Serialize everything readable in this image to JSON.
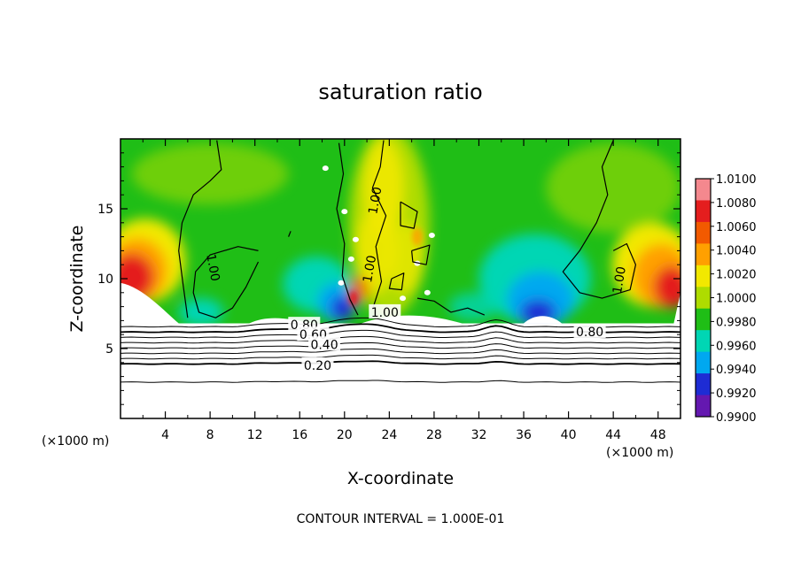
{
  "chart_data": {
    "type": "heatmap",
    "title": "saturation ratio",
    "xlabel": "X-coordinate",
    "ylabel": "Z-coordinate",
    "x_unit_left": "(×1000 m)",
    "x_unit_right": "(×1000 m)",
    "footer": "CONTOUR INTERVAL = 1.000E-01",
    "xlim": [
      0,
      50
    ],
    "ylim": [
      0,
      20
    ],
    "x_ticks": [
      4,
      8,
      12,
      16,
      20,
      24,
      28,
      32,
      36,
      40,
      44,
      48
    ],
    "x_tick_labels": [
      "4",
      "8",
      "12",
      "16",
      "20",
      "24",
      "28",
      "32",
      "36",
      "40",
      "44",
      "48"
    ],
    "y_ticks": [
      5,
      10,
      15
    ],
    "y_tick_labels": [
      "5",
      "10",
      "15"
    ],
    "colorbar": {
      "min": 0.99,
      "max": 1.01,
      "labels": [
        "1.0100",
        "1.0080",
        "1.0060",
        "1.0040",
        "1.0020",
        "1.0000",
        "0.9980",
        "0.9960",
        "0.9940",
        "0.9920",
        "0.9900"
      ],
      "colors": [
        "#f4888e",
        "#e41e1e",
        "#f25a00",
        "#ffa000",
        "#f2e800",
        "#aedc00",
        "#1fbe16",
        "#00d6b4",
        "#00a8f0",
        "#1e2cd4",
        "#6418b0"
      ]
    },
    "contour_labels": [
      {
        "text": "1.00",
        "x": 8.3,
        "y": 10.8,
        "angle": 80
      },
      {
        "text": "1.00",
        "x": 22.7,
        "y": 15.6,
        "angle": -80
      },
      {
        "text": "1.00",
        "x": 22.2,
        "y": 10.7,
        "angle": -80
      },
      {
        "text": "1.00",
        "x": 23.6,
        "y": 7.6,
        "angle": 0
      },
      {
        "text": "1.00",
        "x": 44.5,
        "y": 9.9,
        "angle": -80
      },
      {
        "text": "0.80",
        "x": 16.4,
        "y": 6.7,
        "angle": 0
      },
      {
        "text": "0.60",
        "x": 17.2,
        "y": 6.0,
        "angle": 0
      },
      {
        "text": "0.40",
        "x": 18.2,
        "y": 5.3,
        "angle": 0
      },
      {
        "text": "0.20",
        "x": 17.6,
        "y": 3.8,
        "angle": 0
      },
      {
        "text": "0.80",
        "x": 41.9,
        "y": 6.2,
        "angle": 0
      }
    ],
    "contour_levels_lower": [
      0.2,
      0.3,
      0.4,
      0.5,
      0.6,
      0.7,
      0.8,
      0.9
    ],
    "cloud_top_height": 6.8,
    "field_regions": [
      {
        "kind": "supersat_left",
        "x_range": [
          0,
          7
        ],
        "z_range": [
          6.8,
          14
        ],
        "max_value": 1.0096
      },
      {
        "kind": "supersat_right",
        "x_range": [
          43,
          50
        ],
        "z_range": [
          6.8,
          14
        ],
        "max_value": 1.0096
      },
      {
        "kind": "subsat_center",
        "x_range": [
          18,
          21
        ],
        "z_range": [
          6.8,
          9.5
        ],
        "min_value": 0.9915
      },
      {
        "kind": "subsat_right",
        "x_range": [
          35,
          40
        ],
        "z_range": [
          6.8,
          10
        ],
        "min_value": 0.9935
      },
      {
        "kind": "plume",
        "x_range": [
          19,
          29
        ],
        "z_range": [
          6.8,
          20
        ],
        "max_value": 1.004
      }
    ]
  }
}
